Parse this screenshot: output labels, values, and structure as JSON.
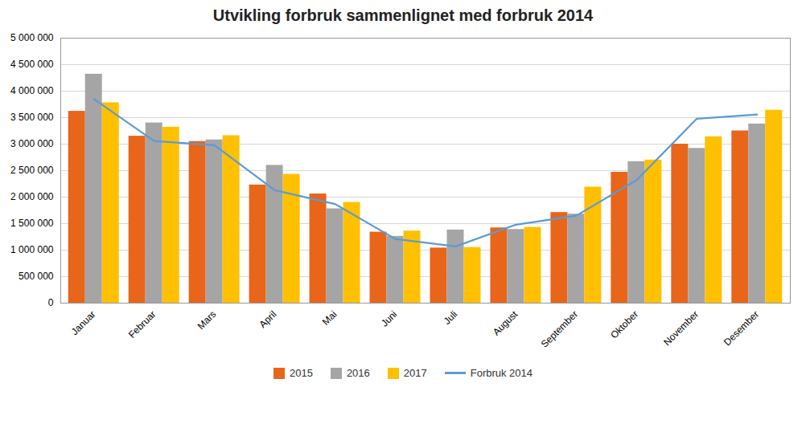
{
  "chart_data": {
    "type": "bar",
    "title": "Utvikling forbruk sammenlignet med forbruk 2014",
    "categories": [
      "Januar",
      "Februar",
      "Mars",
      "April",
      "Mai",
      "Juni",
      "Juli",
      "August",
      "September",
      "Oktober",
      "November",
      "Desember"
    ],
    "series": [
      {
        "name": "2015",
        "type": "bar",
        "color": "#E8651A",
        "values": [
          3620000,
          3150000,
          3050000,
          2230000,
          2060000,
          1340000,
          1040000,
          1420000,
          1710000,
          2470000,
          3000000,
          3250000
        ]
      },
      {
        "name": "2016",
        "type": "bar",
        "color": "#A5A5A5",
        "values": [
          4320000,
          3400000,
          3080000,
          2600000,
          1780000,
          1260000,
          1380000,
          1390000,
          1680000,
          2670000,
          2920000,
          3380000
        ]
      },
      {
        "name": "2017",
        "type": "bar",
        "color": "#FFC000",
        "values": [
          3780000,
          3320000,
          3160000,
          2430000,
          1900000,
          1360000,
          1050000,
          1430000,
          2190000,
          2700000,
          3140000,
          3640000
        ]
      },
      {
        "name": "Forbruk 2014",
        "type": "line",
        "color": "#5B9BD5",
        "values": [
          3850000,
          3060000,
          2980000,
          2130000,
          1870000,
          1210000,
          1070000,
          1480000,
          1650000,
          2320000,
          3480000,
          3560000
        ]
      }
    ],
    "ylim": [
      0,
      5000000
    ],
    "yticks": [
      0,
      {
        "value": 500000,
        "label": "500 000"
      },
      {
        "value": 1000000,
        "label": "1 000 000"
      },
      {
        "value": 1500000,
        "label": "1 500 000"
      },
      {
        "value": 2000000,
        "label": "2 000 000"
      },
      {
        "value": 2500000,
        "label": "2 500 000"
      },
      {
        "value": 3000000,
        "label": "3 000 000"
      },
      {
        "value": 3500000,
        "label": "3 500 000"
      },
      {
        "value": 4000000,
        "label": "4 000 000"
      },
      {
        "value": 4500000,
        "label": "4 500 000"
      },
      {
        "value": 5000000,
        "label": "5 000 000"
      }
    ],
    "grid": true,
    "legend": "bottom"
  }
}
